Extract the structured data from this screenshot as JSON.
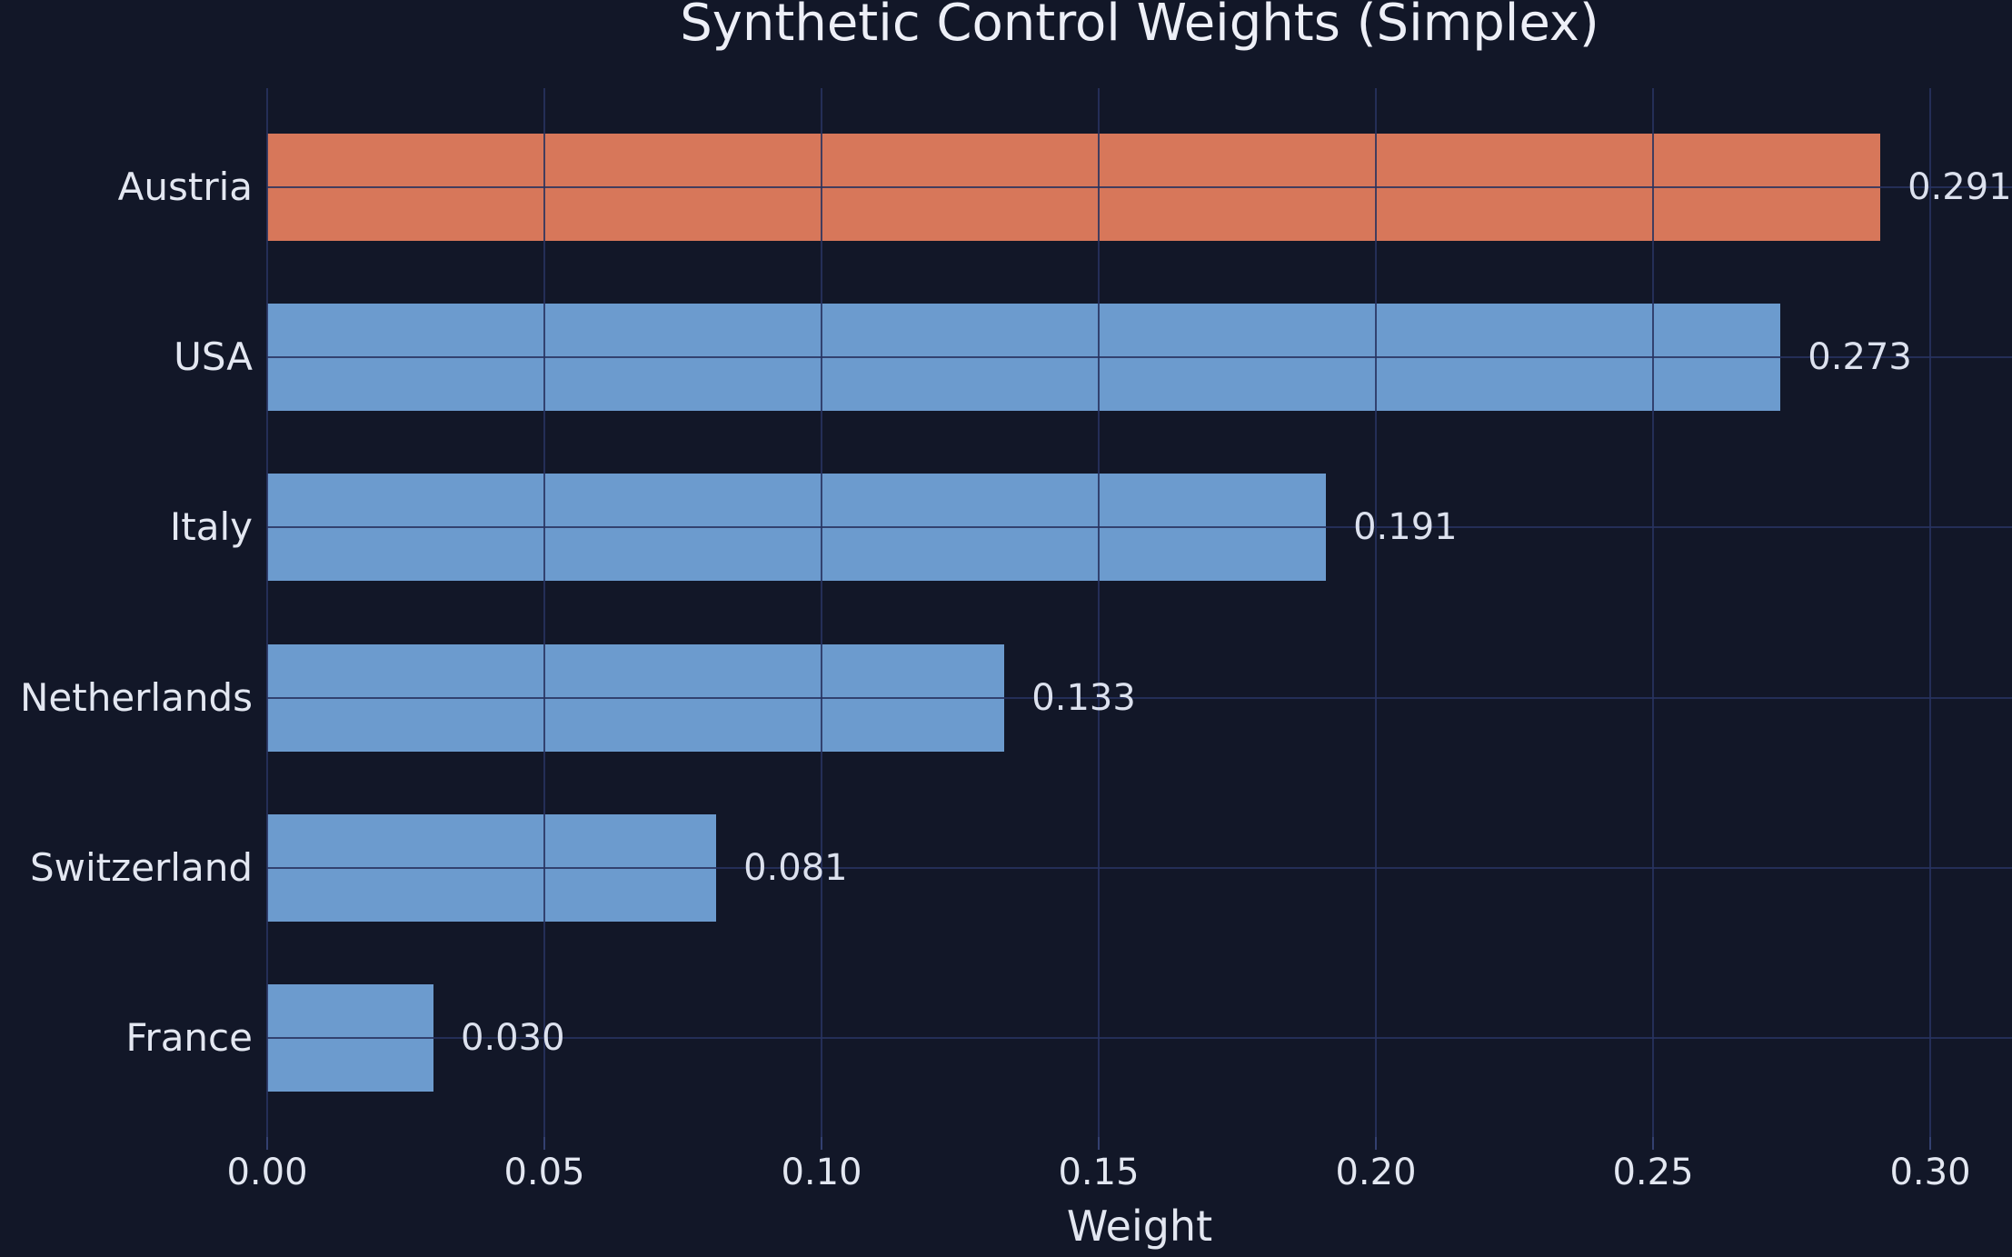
{
  "chart_data": {
    "type": "bar",
    "orientation": "horizontal",
    "title": "Synthetic Control Weights (Simplex)",
    "xlabel": "Weight",
    "ylabel": "",
    "categories": [
      "Austria",
      "USA",
      "Italy",
      "Netherlands",
      "Switzerland",
      "France"
    ],
    "values": [
      0.291,
      0.273,
      0.191,
      0.133,
      0.081,
      0.03
    ],
    "data_labels": [
      "0.291",
      "0.273",
      "0.191",
      "0.133",
      "0.081",
      "0.030"
    ],
    "bar_colors": [
      "#d7775a",
      "#6c9bce",
      "#6c9bce",
      "#6c9bce",
      "#6c9bce",
      "#6c9bce"
    ],
    "highlight_category": "Austria",
    "x_ticks": [
      "0.00",
      "0.05",
      "0.10",
      "0.15",
      "0.20",
      "0.25",
      "0.30"
    ],
    "x_tick_values": [
      0.0,
      0.05,
      0.1,
      0.15,
      0.2,
      0.25,
      0.3
    ],
    "xlim": [
      0,
      0.315
    ],
    "grid": true,
    "legend": false,
    "colors": {
      "background": "#121728",
      "gridline": "rgba(40,50,95,0.85)",
      "tick_mark": "#334070",
      "highlight_bar": "#d7775a",
      "donor_bar": "#6c9bce",
      "title_text": "#edeff7",
      "axis_text": "#e3e7f1",
      "value_text": "#dce1ee"
    }
  }
}
